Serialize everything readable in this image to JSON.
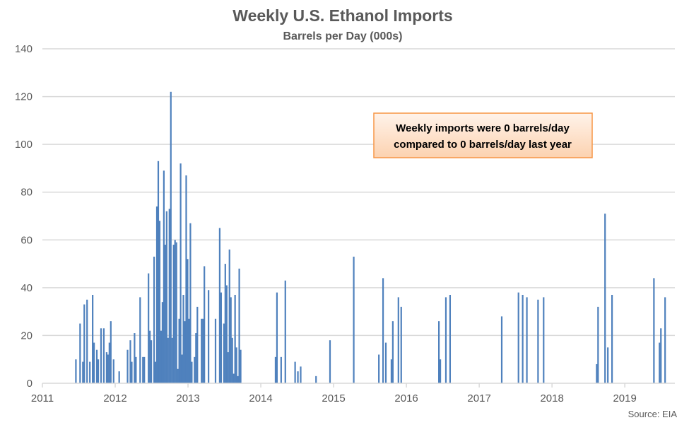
{
  "chart_data": {
    "type": "bar",
    "title": "Weekly U.S. Ethanol Imports",
    "subtitle": "Barrels per Day (000s)",
    "xlabel": "",
    "ylabel": "",
    "x_unit": "weeks since start of 2011",
    "xlim": [
      0,
      453
    ],
    "ylim": [
      0,
      140
    ],
    "yticks": [
      0,
      20,
      40,
      60,
      80,
      100,
      120,
      140
    ],
    "xticks": [
      {
        "label": "2011",
        "week": 0
      },
      {
        "label": "2012",
        "week": 52.14
      },
      {
        "label": "2013",
        "week": 104.29
      },
      {
        "label": "2014",
        "week": 156.43
      },
      {
        "label": "2015",
        "week": 208.57
      },
      {
        "label": "2016",
        "week": 260.71
      },
      {
        "label": "2017",
        "week": 312.86
      },
      {
        "label": "2018",
        "week": 365
      },
      {
        "label": "2019",
        "week": 417.14
      }
    ],
    "grid": true,
    "color": "#4f81bd",
    "series": [
      {
        "name": "Weekly imports",
        "points": [
          [
            24,
            10
          ],
          [
            27,
            25
          ],
          [
            29,
            9
          ],
          [
            30,
            33
          ],
          [
            32,
            35
          ],
          [
            34,
            9
          ],
          [
            36,
            37
          ],
          [
            37,
            17
          ],
          [
            39,
            14
          ],
          [
            40,
            10
          ],
          [
            42,
            23
          ],
          [
            44,
            23
          ],
          [
            46,
            13
          ],
          [
            47,
            12
          ],
          [
            48,
            17
          ],
          [
            49,
            26
          ],
          [
            51,
            10
          ],
          [
            55,
            5
          ],
          [
            61,
            14
          ],
          [
            63,
            18
          ],
          [
            64,
            9
          ],
          [
            66,
            21
          ],
          [
            67,
            11
          ],
          [
            70,
            36
          ],
          [
            72,
            11
          ],
          [
            73,
            11
          ],
          [
            76,
            46
          ],
          [
            77,
            22
          ],
          [
            78,
            18
          ],
          [
            80,
            53
          ],
          [
            81,
            9
          ],
          [
            82,
            74
          ],
          [
            83,
            93
          ],
          [
            84,
            68
          ],
          [
            85,
            22
          ],
          [
            86,
            34
          ],
          [
            87,
            89
          ],
          [
            88,
            58
          ],
          [
            89,
            72
          ],
          [
            90,
            19
          ],
          [
            91,
            73
          ],
          [
            92,
            122
          ],
          [
            93,
            19
          ],
          [
            94,
            58
          ],
          [
            95,
            60
          ],
          [
            96,
            59
          ],
          [
            97,
            6
          ],
          [
            98,
            27
          ],
          [
            99,
            92
          ],
          [
            100,
            12
          ],
          [
            101,
            37
          ],
          [
            102,
            26
          ],
          [
            103,
            87
          ],
          [
            104,
            52
          ],
          [
            105,
            27
          ],
          [
            106,
            67
          ],
          [
            107,
            9
          ],
          [
            109,
            11
          ],
          [
            110,
            21
          ],
          [
            111,
            32
          ],
          [
            114,
            27
          ],
          [
            115,
            27
          ],
          [
            116,
            49
          ],
          [
            119,
            39
          ],
          [
            124,
            27
          ],
          [
            127,
            65
          ],
          [
            128,
            38
          ],
          [
            130,
            25
          ],
          [
            131,
            50
          ],
          [
            132,
            41
          ],
          [
            133,
            13
          ],
          [
            134,
            56
          ],
          [
            135,
            36
          ],
          [
            136,
            19
          ],
          [
            137,
            4
          ],
          [
            138,
            37
          ],
          [
            139,
            15
          ],
          [
            140,
            3
          ],
          [
            141,
            48
          ],
          [
            142,
            14
          ],
          [
            167,
            11
          ],
          [
            168,
            38
          ],
          [
            171,
            11
          ],
          [
            174,
            43
          ],
          [
            181,
            9
          ],
          [
            183,
            5
          ],
          [
            185,
            7
          ],
          [
            196,
            3
          ],
          [
            206,
            18
          ],
          [
            223,
            53
          ],
          [
            241,
            12
          ],
          [
            244,
            44
          ],
          [
            246,
            17
          ],
          [
            250,
            10
          ],
          [
            251,
            26
          ],
          [
            255,
            36
          ],
          [
            257,
            32
          ],
          [
            284,
            26
          ],
          [
            285,
            10
          ],
          [
            289,
            36
          ],
          [
            292,
            37
          ],
          [
            329,
            28
          ],
          [
            341,
            38
          ],
          [
            344,
            37
          ],
          [
            347,
            36
          ],
          [
            355,
            35
          ],
          [
            359,
            36
          ],
          [
            397,
            8
          ],
          [
            398,
            32
          ],
          [
            403,
            71
          ],
          [
            405,
            15
          ],
          [
            408,
            37
          ],
          [
            438,
            44
          ],
          [
            442,
            17
          ],
          [
            443,
            23
          ],
          [
            446,
            36
          ]
        ]
      }
    ],
    "annotation": {
      "line1": "Weekly imports were 0 barrels/day",
      "line2": "compared to 0 barrels/day last year"
    },
    "source": "Source: EIA"
  }
}
